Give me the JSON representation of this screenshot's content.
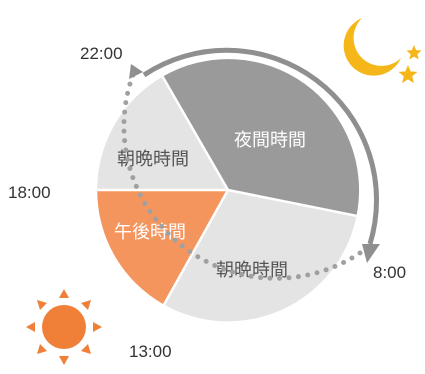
{
  "diagram": {
    "segments": [
      {
        "label": "夜間時間",
        "color": "#9a9a9a",
        "text_color": "#ffffff"
      },
      {
        "label": "朝晩時間",
        "color": "#e4e4e4",
        "text_color": "#555555"
      },
      {
        "label": "午後時間",
        "color": "#f5955e",
        "text_color": "#ffffff"
      },
      {
        "label": "朝晩時間",
        "color": "#e4e4e4",
        "text_color": "#555555"
      }
    ],
    "times": {
      "t2200": "22:00",
      "t0800": "8:00",
      "t1300": "13:00",
      "t1800": "18:00"
    },
    "icons": {
      "night": "moon-and-stars-icon",
      "day": "sun-icon"
    },
    "colors": {
      "arrow_solid": "#8f8f8f",
      "arrow_dotted": "#a0a0a0",
      "moon": "#f5b61a",
      "sun": "#f08038"
    }
  }
}
